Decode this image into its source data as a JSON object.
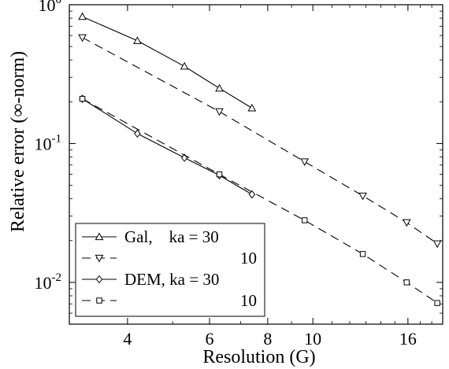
{
  "chart_data": {
    "type": "line",
    "xlabel": "Resolution (G)",
    "ylabel": "Relative error (∞-norm)",
    "xscale": "log",
    "yscale": "log",
    "xlim": [
      3.0,
      19.0
    ],
    "ylim": [
      0.005,
      1.0
    ],
    "xticks": [
      {
        "value": 4,
        "label": "4"
      },
      {
        "value": 6,
        "label": "6"
      },
      {
        "value": 8,
        "label": "8"
      },
      {
        "value": 10,
        "label": "10"
      },
      {
        "value": 16,
        "label": "16"
      }
    ],
    "yticks": [
      {
        "value": 1,
        "base": "10",
        "exp": "0"
      },
      {
        "value": 0.1,
        "base": "10",
        "exp": "-1"
      },
      {
        "value": 0.01,
        "base": "10",
        "exp": "-2"
      }
    ],
    "grid": false,
    "legend_position": "bottom-left",
    "series": [
      {
        "name": "Gal,    ka = 30",
        "marker": "triangle-up",
        "line_style": "solid",
        "points": [
          [
            3.2,
            0.82
          ],
          [
            4.2,
            0.55
          ],
          [
            5.3,
            0.36
          ],
          [
            6.3,
            0.25
          ],
          [
            7.4,
            0.18
          ]
        ]
      },
      {
        "name": "10",
        "marker": "triangle-down",
        "line_style": "dashed",
        "points": [
          [
            3.2,
            0.58
          ],
          [
            6.3,
            0.17
          ],
          [
            9.6,
            0.074
          ],
          [
            12.8,
            0.042
          ],
          [
            15.9,
            0.027
          ],
          [
            18.5,
            0.019
          ]
        ]
      },
      {
        "name": "DEM, ka = 30",
        "marker": "diamond",
        "line_style": "solid",
        "points": [
          [
            3.2,
            0.21
          ],
          [
            4.2,
            0.118
          ],
          [
            5.3,
            0.079
          ],
          [
            6.3,
            0.059
          ],
          [
            7.4,
            0.043
          ]
        ]
      },
      {
        "name": "10",
        "marker": "square",
        "line_style": "dashed",
        "points": [
          [
            3.2,
            0.21
          ],
          [
            6.3,
            0.06
          ],
          [
            9.6,
            0.028
          ],
          [
            12.8,
            0.016
          ],
          [
            15.9,
            0.01
          ],
          [
            18.5,
            0.0071
          ]
        ]
      }
    ]
  }
}
